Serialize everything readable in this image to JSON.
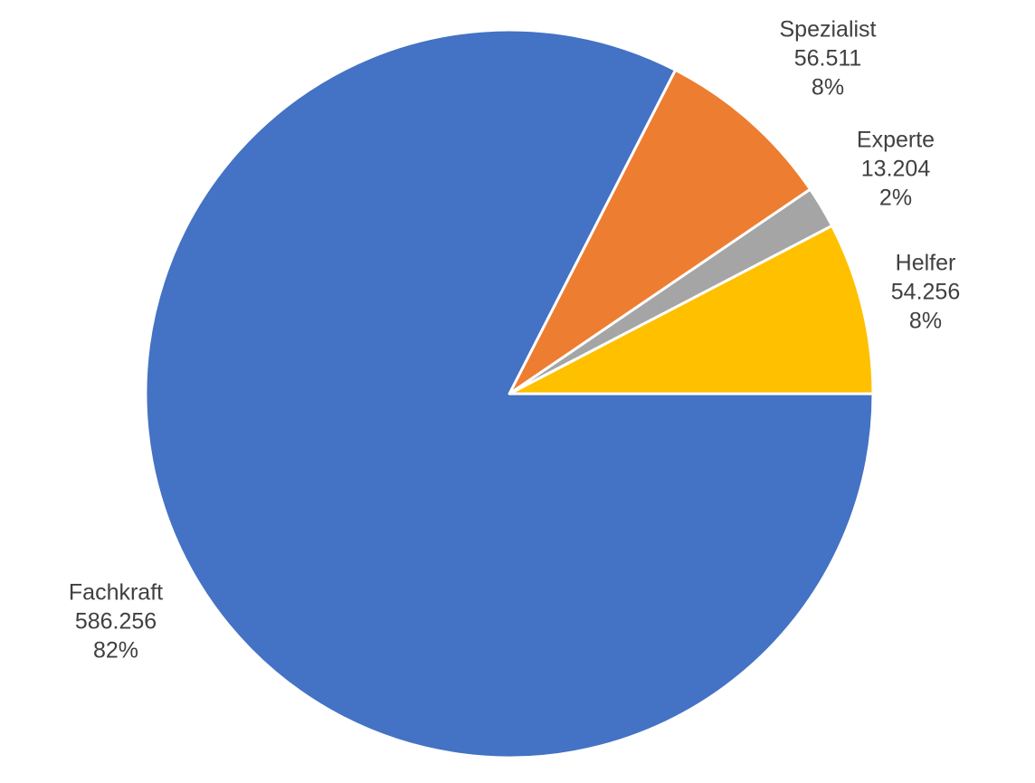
{
  "chart_data": {
    "type": "pie",
    "categories": [
      "Helfer",
      "Experte",
      "Spezialist",
      "Fachkraft"
    ],
    "values": [
      54256,
      13204,
      56511,
      586256
    ],
    "value_labels": [
      "54.256",
      "13.204",
      "56.511",
      "586.256"
    ],
    "percent_labels": [
      "8%",
      "2%",
      "8%",
      "82%"
    ],
    "colors": [
      "#ffc000",
      "#a5a5a5",
      "#ed7d31",
      "#4472c4"
    ]
  }
}
